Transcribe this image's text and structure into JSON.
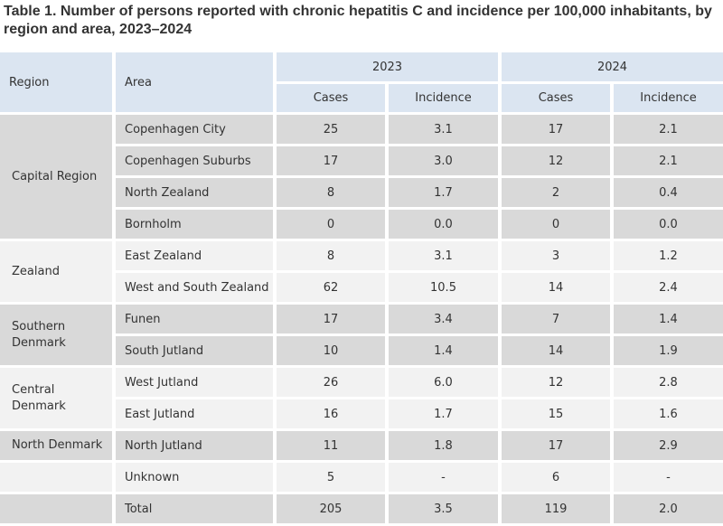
{
  "title": "Table 1. Number of persons reported with chronic hepatitis C and incidence per 100,000 inhabitants, by region and area, 2023–2024",
  "headers": {
    "region": "Region",
    "area": "Area",
    "year_2023": "2023",
    "year_2024": "2024",
    "cases": "Cases",
    "incidence": "Incidence"
  },
  "regions": [
    {
      "name": "Capital Region",
      "areas": [
        {
          "area": "Copenhagen City",
          "cases_2023": "25",
          "inc_2023": "3.1",
          "cases_2024": "17",
          "inc_2024": "2.1"
        },
        {
          "area": "Copenhagen Suburbs",
          "cases_2023": "17",
          "inc_2023": "3.0",
          "cases_2024": "12",
          "inc_2024": "2.1"
        },
        {
          "area": "North Zealand",
          "cases_2023": "8",
          "inc_2023": "1.7",
          "cases_2024": "2",
          "inc_2024": "0.4"
        },
        {
          "area": "Bornholm",
          "cases_2023": "0",
          "inc_2023": "0.0",
          "cases_2024": "0",
          "inc_2024": "0.0"
        }
      ]
    },
    {
      "name": "Zealand",
      "areas": [
        {
          "area": "East Zealand",
          "cases_2023": "8",
          "inc_2023": "3.1",
          "cases_2024": "3",
          "inc_2024": "1.2"
        },
        {
          "area": "West and South Zealand",
          "cases_2023": "62",
          "inc_2023": "10.5",
          "cases_2024": "14",
          "inc_2024": "2.4"
        }
      ]
    },
    {
      "name_line1": "Southern",
      "name_line2": "Denmark",
      "areas": [
        {
          "area": "Funen",
          "cases_2023": "17",
          "inc_2023": "3.4",
          "cases_2024": "7",
          "inc_2024": "1.4"
        },
        {
          "area": "South Jutland",
          "cases_2023": "10",
          "inc_2023": "1.4",
          "cases_2024": "14",
          "inc_2024": "1.9"
        }
      ]
    },
    {
      "name_line1": "Central",
      "name_line2": "Denmark",
      "areas": [
        {
          "area": "West Jutland",
          "cases_2023": "26",
          "inc_2023": "6.0",
          "cases_2024": "12",
          "inc_2024": "2.8"
        },
        {
          "area": "East Jutland",
          "cases_2023": "16",
          "inc_2023": "1.7",
          "cases_2024": "15",
          "inc_2024": "1.6"
        }
      ]
    },
    {
      "name": "North Denmark",
      "areas": [
        {
          "area": "North Jutland",
          "cases_2023": "11",
          "inc_2023": "1.8",
          "cases_2024": "17",
          "inc_2024": "2.9"
        }
      ]
    }
  ],
  "unknown": {
    "region": "",
    "area": "Unknown",
    "cases_2023": "5",
    "inc_2023": "-",
    "cases_2024": "6",
    "inc_2024": "-"
  },
  "total": {
    "region": "",
    "area": "Total",
    "cases_2023": "205",
    "inc_2023": "3.5",
    "cases_2024": "119",
    "inc_2024": "2.0"
  },
  "colors": {
    "header_bg": "#dbe5f1",
    "row_dark": "#d9d9d9",
    "row_light": "#f2f2f2",
    "text": "#333333"
  }
}
